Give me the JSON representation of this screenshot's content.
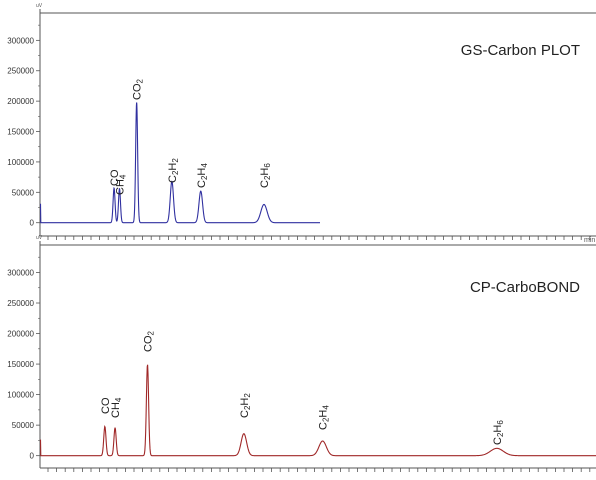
{
  "chart_data": [
    {
      "type": "line",
      "title": "GS-Carbon PLOT",
      "units_label": "uV",
      "x_units_label": "min",
      "ylim": [
        -12000,
        345000
      ],
      "yticks": [
        0,
        50000,
        100000,
        150000,
        200000,
        250000,
        300000
      ],
      "ytick_labels": [
        "0",
        "50000",
        "100000",
        "150000",
        "200000",
        "250000",
        "300000"
      ],
      "color": "#3030a0",
      "x_range": [
        0,
        31
      ],
      "baseline": 0,
      "peaks": [
        {
          "name": "CO",
          "x": 8.2,
          "y": 57000,
          "width": 0.11
        },
        {
          "name": "CH4",
          "x": 8.8,
          "y": 56000,
          "width": 0.11
        },
        {
          "name": "CO2",
          "x": 10.7,
          "y": 198000,
          "width": 0.11
        },
        {
          "name": "C2H2",
          "x": 14.6,
          "y": 68000,
          "width": 0.18
        },
        {
          "name": "C2H4",
          "x": 17.8,
          "y": 52000,
          "width": 0.2
        },
        {
          "name": "C2H6",
          "x": 24.8,
          "y": 30000,
          "width": 0.35
        }
      ],
      "peak_labels": [
        {
          "main": "CO",
          "parts": [
            [
              "CO",
              false
            ]
          ]
        },
        {
          "main": "CH4",
          "parts": [
            [
              "CH",
              false
            ],
            [
              "4",
              true
            ]
          ]
        },
        {
          "main": "CO2",
          "parts": [
            [
              "CO",
              false
            ],
            [
              "2",
              true
            ]
          ]
        },
        {
          "main": "C2H2",
          "parts": [
            [
              "C",
              false
            ],
            [
              "2",
              true
            ],
            [
              "H",
              false
            ],
            [
              "2",
              true
            ]
          ]
        },
        {
          "main": "C2H4",
          "parts": [
            [
              "C",
              false
            ],
            [
              "2",
              true
            ],
            [
              "H",
              false
            ],
            [
              "4",
              true
            ]
          ]
        },
        {
          "main": "C2H6",
          "parts": [
            [
              "C",
              false
            ],
            [
              "2",
              true
            ],
            [
              "H",
              false
            ],
            [
              "6",
              true
            ]
          ]
        }
      ]
    },
    {
      "type": "line",
      "title": "CP-CarboBOND",
      "units_label": "uV",
      "x_units_label": "",
      "ylim": [
        -12000,
        345000
      ],
      "yticks": [
        0,
        50000,
        100000,
        150000,
        200000,
        250000,
        300000
      ],
      "ytick_labels": [
        "0",
        "50000",
        "100000",
        "150000",
        "200000",
        "250000",
        "300000"
      ],
      "color": "#a02828",
      "x_range": [
        0,
        60
      ],
      "baseline": 0,
      "peaks": [
        {
          "name": "CO",
          "x": 7.0,
          "y": 48000,
          "width": 0.12
        },
        {
          "name": "CH4",
          "x": 8.1,
          "y": 46000,
          "width": 0.12
        },
        {
          "name": "CO2",
          "x": 11.6,
          "y": 150000,
          "width": 0.12
        },
        {
          "name": "C2H2",
          "x": 22.0,
          "y": 36000,
          "width": 0.3
        },
        {
          "name": "C2H4",
          "x": 30.5,
          "y": 24000,
          "width": 0.4
        },
        {
          "name": "C2H6",
          "x": 49.3,
          "y": 12000,
          "width": 0.7
        }
      ],
      "peak_labels": [
        {
          "main": "CO",
          "parts": [
            [
              "CO",
              false
            ]
          ]
        },
        {
          "main": "CH4",
          "parts": [
            [
              "CH",
              false
            ],
            [
              "4",
              true
            ]
          ]
        },
        {
          "main": "CO2",
          "parts": [
            [
              "CO",
              false
            ],
            [
              "2",
              true
            ]
          ]
        },
        {
          "main": "C2H2",
          "parts": [
            [
              "C",
              false
            ],
            [
              "2",
              true
            ],
            [
              "H",
              false
            ],
            [
              "2",
              true
            ]
          ]
        },
        {
          "main": "C2H4",
          "parts": [
            [
              "C",
              false
            ],
            [
              "2",
              true
            ],
            [
              "H",
              false
            ],
            [
              "4",
              true
            ]
          ]
        },
        {
          "main": "C2H6",
          "parts": [
            [
              "C",
              false
            ],
            [
              "2",
              true
            ],
            [
              "H",
              false
            ],
            [
              "6",
              true
            ]
          ]
        }
      ]
    }
  ]
}
